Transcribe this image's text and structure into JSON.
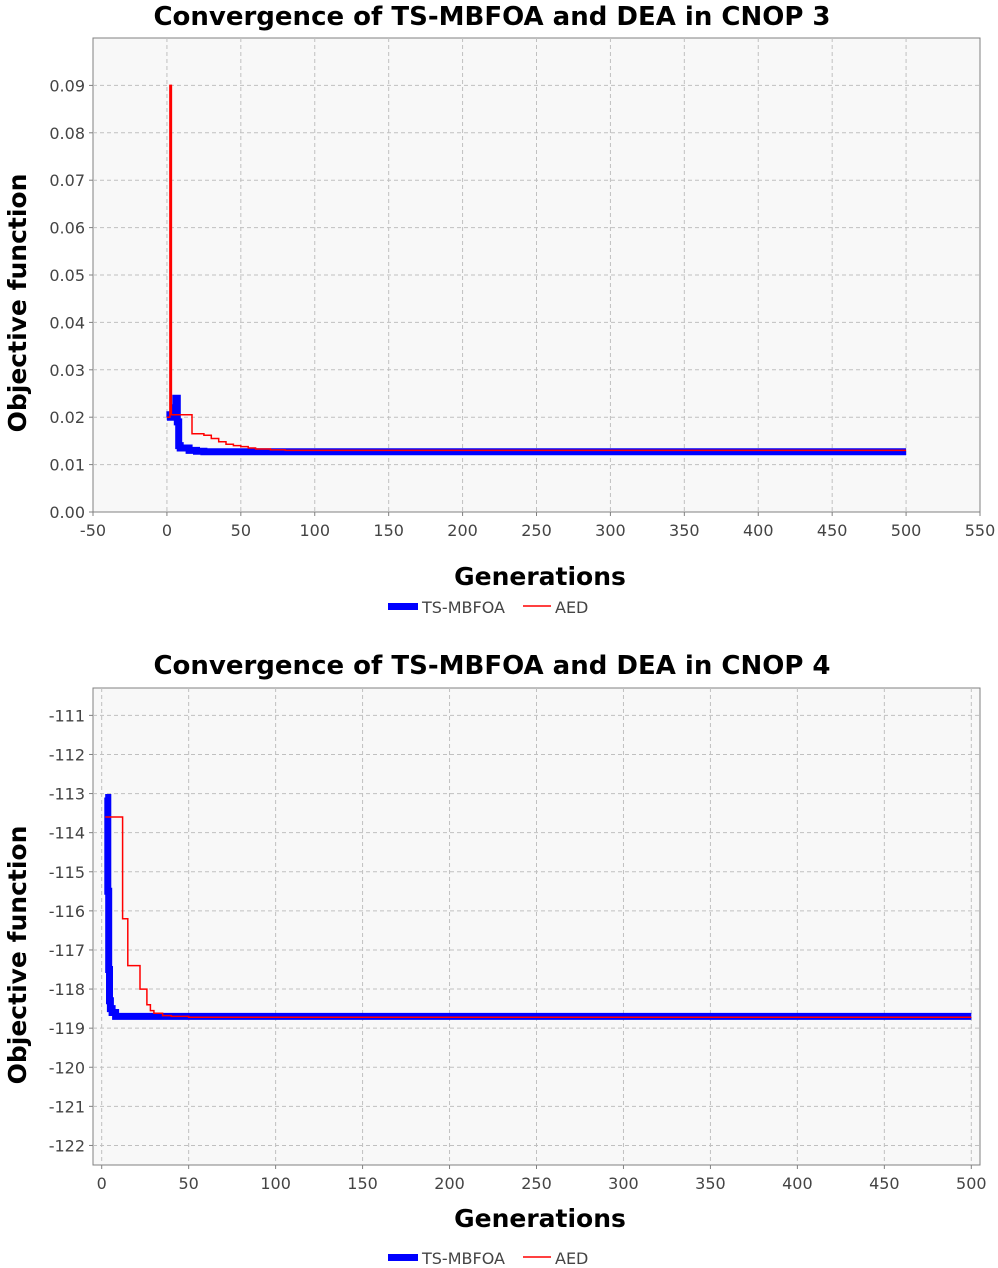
{
  "colors": {
    "ts_mbfoa": "#0000ff",
    "aed": "#ff0000",
    "plot_bg": "#f8f8f8",
    "grid": "#c0c0c0",
    "axis": "#808080"
  },
  "chart_data": [
    {
      "type": "line",
      "title": "Convergence of TS-MBFOA and DEA in CNOP 3",
      "xlabel": "Generations",
      "ylabel": "Objective function",
      "xlim": [
        -50,
        550
      ],
      "ylim": [
        0.0,
        0.1
      ],
      "xticks": [
        -50,
        0,
        50,
        100,
        150,
        200,
        250,
        300,
        350,
        400,
        450,
        500,
        550
      ],
      "xtick_labels": [
        "-50",
        "0",
        "50",
        "100",
        "150",
        "200",
        "250",
        "300",
        "350",
        "400",
        "450",
        "500",
        "550"
      ],
      "yticks": [
        0.0,
        0.01,
        0.02,
        0.03,
        0.04,
        0.05,
        0.06,
        0.07,
        0.08,
        0.09
      ],
      "ytick_labels": [
        "0.00",
        "0.01",
        "0.02",
        "0.03",
        "0.04",
        "0.05",
        "0.06",
        "0.07",
        "0.08",
        "0.09"
      ],
      "grid": true,
      "legend_position": "bottom-center",
      "series": [
        {
          "name": "TS-MBFOA",
          "color": "#0000ff",
          "x": [
            0,
            2,
            3,
            4,
            5,
            6,
            7,
            8,
            9,
            10,
            15,
            20,
            25,
            30,
            40,
            50,
            60,
            80,
            100,
            200,
            300,
            400,
            500
          ],
          "y": [
            0.02,
            0.0205,
            0.02,
            0.02,
            0.022,
            0.024,
            0.019,
            0.014,
            0.0135,
            0.0135,
            0.013,
            0.0128,
            0.0127,
            0.0127,
            0.0127,
            0.0127,
            0.0127,
            0.0127,
            0.0127,
            0.0127,
            0.0127,
            0.0127,
            0.0127
          ]
        },
        {
          "name": "AED",
          "color": "#ff0000",
          "x": [
            0,
            2,
            3,
            5,
            10,
            15,
            17,
            25,
            30,
            35,
            40,
            45,
            50,
            55,
            60,
            70,
            80,
            100,
            200,
            300,
            400,
            500
          ],
          "y": [
            0.02,
            0.09,
            0.0205,
            0.0205,
            0.0205,
            0.0205,
            0.0165,
            0.0162,
            0.0155,
            0.0148,
            0.0143,
            0.014,
            0.0138,
            0.0135,
            0.0133,
            0.0131,
            0.013,
            0.013,
            0.013,
            0.013,
            0.013,
            0.013
          ]
        }
      ]
    },
    {
      "type": "line",
      "title": "Convergence of TS-MBFOA and DEA in CNOP 4",
      "xlabel": "Generations",
      "ylabel": "Objective function",
      "xlim": [
        -5,
        505
      ],
      "ylim": [
        -122.5,
        -110.3
      ],
      "xticks": [
        0,
        50,
        100,
        150,
        200,
        250,
        300,
        350,
        400,
        450,
        500
      ],
      "xtick_labels": [
        "0",
        "50",
        "100",
        "150",
        "200",
        "250",
        "300",
        "350",
        "400",
        "450",
        "500"
      ],
      "yticks": [
        -122,
        -121,
        -120,
        -119,
        -118,
        -117,
        -116,
        -115,
        -114,
        -113,
        -112,
        -111
      ],
      "ytick_labels": [
        "-122",
        "-121",
        "-120",
        "-119",
        "-118",
        "-117",
        "-116",
        "-115",
        "-114",
        "-113",
        "-112",
        "-111"
      ],
      "grid": true,
      "legend_position": "bottom-center",
      "series": [
        {
          "name": "TS-MBFOA",
          "color": "#0000ff",
          "x": [
            2,
            3,
            3.5,
            4,
            4.5,
            5,
            6,
            8,
            10,
            20,
            30,
            50,
            100,
            200,
            300,
            400,
            500
          ],
          "y": [
            -113.1,
            -113.1,
            -115.5,
            -117.5,
            -118.3,
            -118.5,
            -118.6,
            -118.7,
            -118.7,
            -118.7,
            -118.7,
            -118.7,
            -118.7,
            -118.7,
            -118.7,
            -118.7,
            -118.7
          ]
        },
        {
          "name": "AED",
          "color": "#ff0000",
          "x": [
            2,
            10,
            12,
            15,
            22,
            26,
            28,
            30,
            35,
            40,
            50,
            100,
            200,
            300,
            400,
            500
          ],
          "y": [
            -113.6,
            -113.6,
            -116.2,
            -117.4,
            -118.0,
            -118.4,
            -118.55,
            -118.62,
            -118.68,
            -118.7,
            -118.72,
            -118.72,
            -118.72,
            -118.72,
            -118.72,
            -118.72
          ]
        }
      ]
    }
  ]
}
